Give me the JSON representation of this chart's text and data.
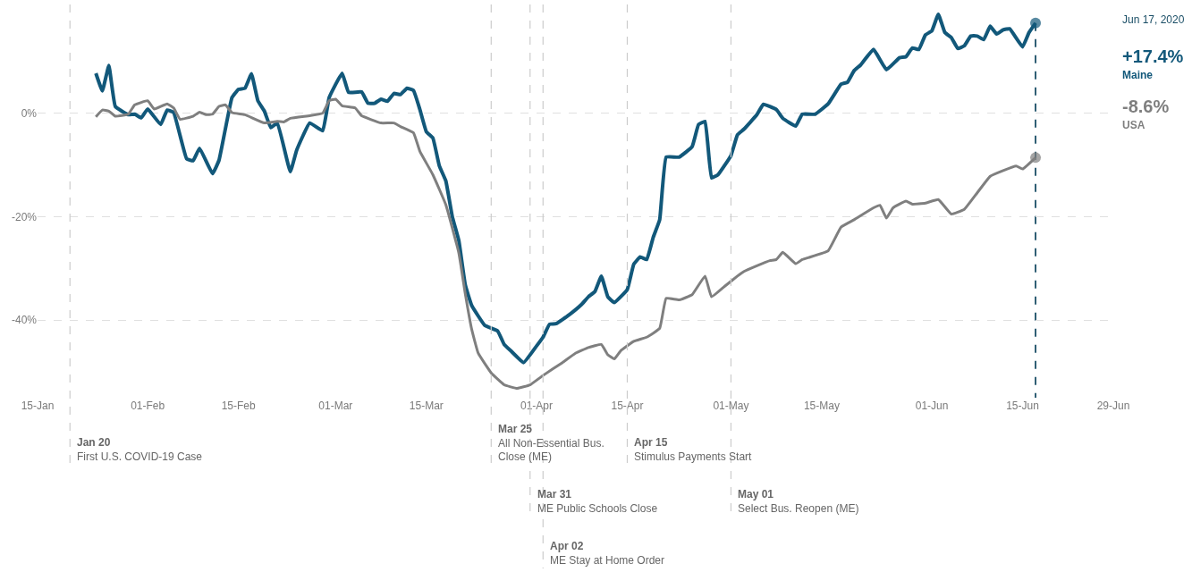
{
  "chart_data": {
    "type": "line",
    "xlim": [
      "2020-01-15",
      "2020-06-29"
    ],
    "xticks": [
      {
        "value": "2020-01-15",
        "label": "15-Jan"
      },
      {
        "value": "2020-02-01",
        "label": "01-Feb"
      },
      {
        "value": "2020-02-15",
        "label": "15-Feb"
      },
      {
        "value": "2020-03-01",
        "label": "01-Mar"
      },
      {
        "value": "2020-03-15",
        "label": "15-Mar"
      },
      {
        "value": "2020-04-01",
        "label": "01-Apr"
      },
      {
        "value": "2020-04-15",
        "label": "15-Apr"
      },
      {
        "value": "2020-05-01",
        "label": "01-May"
      },
      {
        "value": "2020-05-15",
        "label": "15-May"
      },
      {
        "value": "2020-06-01",
        "label": "01-Jun"
      },
      {
        "value": "2020-06-15",
        "label": "15-Jun"
      },
      {
        "value": "2020-06-29",
        "label": "29-Jun"
      }
    ],
    "ylim": [
      -55,
      21
    ],
    "yticks": [
      {
        "value": 0,
        "label": "0%"
      },
      {
        "value": -20,
        "label": "-20%"
      },
      {
        "value": -40,
        "label": "-40%"
      }
    ],
    "grid": "y",
    "legend": false,
    "series": [
      {
        "name": "Maine",
        "color": "#12587a",
        "x": [
          "2020-01-24",
          "2020-01-25",
          "2020-01-26",
          "2020-01-27",
          "2020-01-29",
          "2020-01-30",
          "2020-01-31",
          "2020-02-01",
          "2020-02-03",
          "2020-02-04",
          "2020-02-05",
          "2020-02-07",
          "2020-02-08",
          "2020-02-09",
          "2020-02-11",
          "2020-02-12",
          "2020-02-14",
          "2020-02-15",
          "2020-02-16",
          "2020-02-17",
          "2020-02-18",
          "2020-02-19",
          "2020-02-20",
          "2020-02-21",
          "2020-02-23",
          "2020-02-24",
          "2020-02-26",
          "2020-02-28",
          "2020-02-29",
          "2020-03-02",
          "2020-03-03",
          "2020-03-05",
          "2020-03-06",
          "2020-03-07",
          "2020-03-08",
          "2020-03-09",
          "2020-03-10",
          "2020-03-11",
          "2020-03-12",
          "2020-03-13",
          "2020-03-14",
          "2020-03-15",
          "2020-03-16",
          "2020-03-17",
          "2020-03-18",
          "2020-03-19",
          "2020-03-20",
          "2020-03-21",
          "2020-03-22",
          "2020-03-24",
          "2020-03-26",
          "2020-03-27",
          "2020-03-28",
          "2020-03-30",
          "2020-04-01",
          "2020-04-02",
          "2020-04-03",
          "2020-04-04",
          "2020-04-06",
          "2020-04-08",
          "2020-04-09",
          "2020-04-10",
          "2020-04-11",
          "2020-04-12",
          "2020-04-13",
          "2020-04-15",
          "2020-04-16",
          "2020-04-17",
          "2020-04-18",
          "2020-04-19",
          "2020-04-20",
          "2020-04-21",
          "2020-04-23",
          "2020-04-25",
          "2020-04-26",
          "2020-04-27",
          "2020-04-28",
          "2020-04-29",
          "2020-05-01",
          "2020-05-02",
          "2020-05-03",
          "2020-05-05",
          "2020-05-06",
          "2020-05-08",
          "2020-05-09",
          "2020-05-11",
          "2020-05-12",
          "2020-05-14",
          "2020-05-16",
          "2020-05-18",
          "2020-05-19",
          "2020-05-20",
          "2020-05-21",
          "2020-05-23",
          "2020-05-25",
          "2020-05-27",
          "2020-05-28",
          "2020-05-29",
          "2020-05-30",
          "2020-05-31",
          "2020-06-01",
          "2020-06-02",
          "2020-06-03",
          "2020-06-04",
          "2020-06-05",
          "2020-06-06",
          "2020-06-07",
          "2020-06-08",
          "2020-06-09",
          "2020-06-10",
          "2020-06-11",
          "2020-06-12",
          "2020-06-13",
          "2020-06-15",
          "2020-06-16",
          "2020-06-17"
        ],
        "values": [
          7.7,
          4.3,
          9.2,
          1.3,
          -0.3,
          -0.2,
          -0.9,
          0.8,
          -2.2,
          0.6,
          0.1,
          -8.8,
          -9.2,
          -6.8,
          -11.7,
          -9.1,
          3.0,
          4.6,
          4.8,
          7.6,
          2.4,
          0.4,
          -2.8,
          -1.9,
          -11.3,
          -7.1,
          -1.9,
          -3.4,
          3.0,
          7.7,
          4.0,
          4.1,
          1.9,
          1.9,
          2.7,
          2.3,
          3.8,
          3.6,
          4.8,
          4.4,
          0.7,
          -3.6,
          -4.8,
          -10.2,
          -13.1,
          -20,
          -24.6,
          -33.2,
          -37.2,
          -41,
          -42.1,
          -44.7,
          -45.9,
          -48.2,
          -45,
          -43.3,
          -40.8,
          -40.7,
          -39,
          -36.9,
          -35.5,
          -34.5,
          -31.5,
          -35.5,
          -36.6,
          -34.1,
          -29.2,
          -27.8,
          -28.3,
          -24,
          -20.6,
          -8.5,
          -8.5,
          -6.5,
          -2.2,
          -1.6,
          -12.5,
          -11.9,
          -8.2,
          -4.2,
          -3.1,
          -0.3,
          1.7,
          0.7,
          -1.0,
          -2.5,
          -0.2,
          -0.2,
          1.8,
          5.6,
          6.0,
          8.2,
          9.3,
          12.3,
          8.4,
          10.7,
          10.9,
          12.6,
          12.3,
          15.1,
          15.9,
          19.1,
          15.6,
          14.6,
          12.5,
          13.0,
          14.9,
          14.9,
          14.2,
          16.8,
          15.3,
          16.1,
          16.3,
          12.8,
          15.6,
          17.4
        ]
      },
      {
        "name": "USA",
        "color": "#7f7f7f",
        "x": [
          "2020-01-24",
          "2020-01-25",
          "2020-01-26",
          "2020-01-27",
          "2020-01-29",
          "2020-01-30",
          "2020-02-01",
          "2020-02-02",
          "2020-02-04",
          "2020-02-05",
          "2020-02-06",
          "2020-02-08",
          "2020-02-09",
          "2020-02-10",
          "2020-02-11",
          "2020-02-12",
          "2020-02-13",
          "2020-02-14",
          "2020-02-16",
          "2020-02-19",
          "2020-02-21",
          "2020-02-22",
          "2020-02-23",
          "2020-02-26",
          "2020-02-28",
          "2020-02-29",
          "2020-03-01",
          "2020-03-02",
          "2020-03-04",
          "2020-03-05",
          "2020-03-08",
          "2020-03-10",
          "2020-03-11",
          "2020-03-13",
          "2020-03-14",
          "2020-03-16",
          "2020-03-18",
          "2020-03-20",
          "2020-03-21",
          "2020-03-22",
          "2020-03-23",
          "2020-03-25",
          "2020-03-27",
          "2020-03-29",
          "2020-03-31",
          "2020-04-02",
          "2020-04-05",
          "2020-04-07",
          "2020-04-09",
          "2020-04-11",
          "2020-04-12",
          "2020-04-13",
          "2020-04-14",
          "2020-04-16",
          "2020-04-18",
          "2020-04-20",
          "2020-04-21",
          "2020-04-23",
          "2020-04-25",
          "2020-04-27",
          "2020-04-28",
          "2020-04-30",
          "2020-05-02",
          "2020-05-03",
          "2020-05-05",
          "2020-05-07",
          "2020-05-08",
          "2020-05-09",
          "2020-05-11",
          "2020-05-12",
          "2020-05-13",
          "2020-05-16",
          "2020-05-18",
          "2020-05-20",
          "2020-05-23",
          "2020-05-24",
          "2020-05-25",
          "2020-05-26",
          "2020-05-28",
          "2020-05-29",
          "2020-05-31",
          "2020-06-02",
          "2020-06-04",
          "2020-06-06",
          "2020-06-08",
          "2020-06-10",
          "2020-06-12",
          "2020-06-14",
          "2020-06-15",
          "2020-06-17"
        ],
        "values": [
          -0.7,
          0.6,
          0.4,
          -0.6,
          -0.2,
          1.6,
          2.4,
          0.8,
          1.8,
          1.0,
          -1.2,
          -0.6,
          0.2,
          -0.3,
          -0.2,
          1.3,
          1.6,
          0.1,
          -0.3,
          -1.9,
          -1.6,
          -1.7,
          -1.0,
          -0.5,
          0,
          2.4,
          2.7,
          1.4,
          1.0,
          -0.5,
          -1.9,
          -1.9,
          -2.6,
          -3.8,
          -7.4,
          -11.9,
          -17.7,
          -27,
          -34.9,
          -41.8,
          -46.4,
          -50.2,
          -52.5,
          -53.2,
          -52.5,
          -50.7,
          -48.2,
          -46.4,
          -45.3,
          -44.7,
          -46.7,
          -47.5,
          -45.9,
          -44.1,
          -43.3,
          -41.6,
          -35.8,
          -36.1,
          -35.1,
          -31.5,
          -35.5,
          -33.5,
          -31.5,
          -30.6,
          -29.5,
          -28.5,
          -28.3,
          -26.9,
          -29.1,
          -28.3,
          -27.9,
          -26.6,
          -22.0,
          -20.6,
          -18.3,
          -17.8,
          -20.3,
          -18.3,
          -17.0,
          -17.6,
          -17.4,
          -16.7,
          -19.5,
          -18.6,
          -15.4,
          -12.2,
          -11.1,
          -10.2,
          -10.8,
          -8.6
        ]
      }
    ],
    "ref_lines": [
      {
        "axis": "x",
        "value": "2020-01-20",
        "label": "Jan 20\nFirst U.S. COVID-19 Case",
        "color": "#cccccc",
        "line_style": "dashed"
      },
      {
        "axis": "x",
        "value": "2020-03-25",
        "label": "Mar 25\nAll Non-Essential Bus.\nClose (ME)",
        "color": "#cccccc",
        "line_style": "dashed"
      },
      {
        "axis": "x",
        "value": "2020-03-31",
        "label": "Mar 31\nME Public Schools Close",
        "color": "#cccccc",
        "line_style": "dashed"
      },
      {
        "axis": "x",
        "value": "2020-04-02",
        "label": "Apr 02\nME Stay at Home Order",
        "color": "#cccccc",
        "line_style": "dashed"
      },
      {
        "axis": "x",
        "value": "2020-04-15",
        "label": "Apr 15\nStimulus Payments Start",
        "color": "#cccccc",
        "line_style": "dashed"
      },
      {
        "axis": "x",
        "value": "2020-05-01",
        "label": "May 01\nSelect Bus. Reopen (ME)",
        "color": "#cccccc",
        "line_style": "dashed"
      },
      {
        "axis": "x",
        "value": "2020-06-17",
        "color": "#1a4e66",
        "line_style": "dashed"
      }
    ],
    "annotations": [
      "Jun 17, 2020",
      "+17.4%",
      "-8.6%"
    ]
  }
}
